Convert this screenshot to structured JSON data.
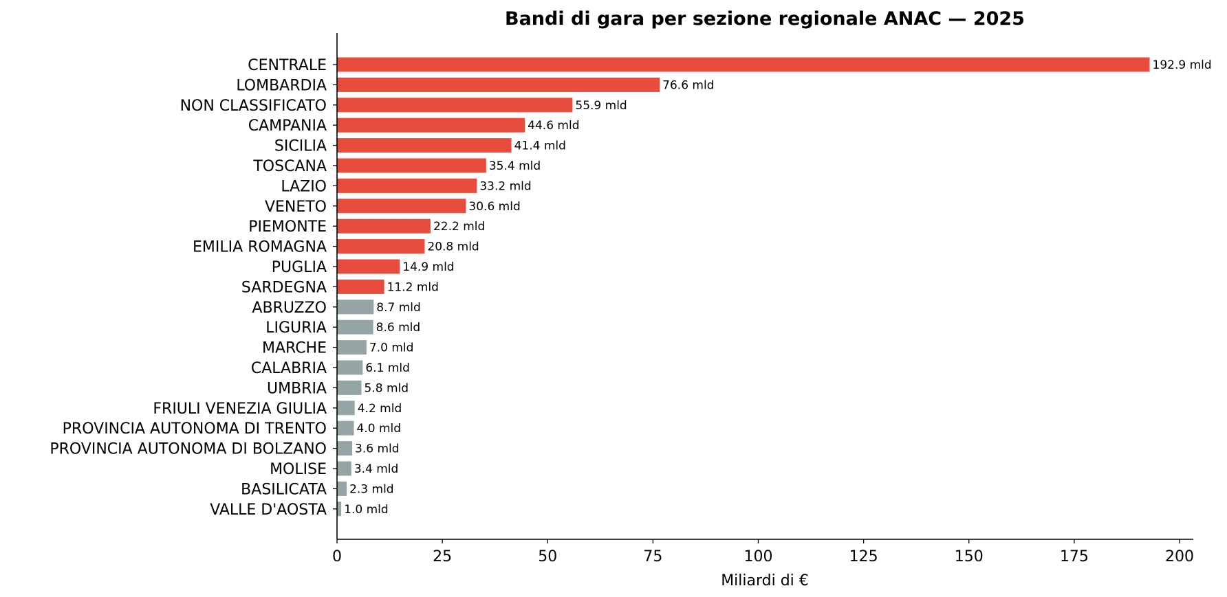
{
  "chart_data": {
    "type": "bar",
    "orientation": "horizontal",
    "title": "Bandi di gara per sezione regionale ANAC — 2025",
    "xlabel": "Miliardi di €",
    "ylabel": "",
    "xlim": [
      0,
      202
    ],
    "x_ticks": [
      0,
      25,
      50,
      75,
      100,
      125,
      150,
      175,
      200
    ],
    "grid": false,
    "legend": "none",
    "colors": {
      "highlight": "#e74c3c",
      "other": "#95a5a6"
    },
    "categories": [
      "CENTRALE",
      "LOMBARDIA",
      "NON CLASSIFICATO",
      "CAMPANIA",
      "SICILIA",
      "TOSCANA",
      "LAZIO",
      "VENETO",
      "PIEMONTE",
      "EMILIA ROMAGNA",
      "PUGLIA",
      "SARDEGNA",
      "ABRUZZO",
      "LIGURIA",
      "MARCHE",
      "CALABRIA",
      "UMBRIA",
      "FRIULI VENEZIA GIULIA",
      "PROVINCIA AUTONOMA DI TRENTO",
      "PROVINCIA AUTONOMA DI BOLZANO",
      "MOLISE",
      "BASILICATA",
      "VALLE D'AOSTA"
    ],
    "values": [
      192.9,
      76.6,
      55.9,
      44.6,
      41.4,
      35.4,
      33.2,
      30.6,
      22.2,
      20.8,
      14.9,
      11.2,
      8.7,
      8.6,
      7.0,
      6.1,
      5.8,
      4.2,
      4.0,
      3.6,
      3.4,
      2.3,
      1.0
    ],
    "bar_labels": [
      "192.9 mld",
      "76.6 mld",
      "55.9 mld",
      "44.6 mld",
      "41.4 mld",
      "35.4 mld",
      "33.2 mld",
      "30.6 mld",
      "22.2 mld",
      "20.8 mld",
      "14.9 mld",
      "11.2 mld",
      "8.7 mld",
      "8.6 mld",
      "7.0 mld",
      "6.1 mld",
      "5.8 mld",
      "4.2 mld",
      "4.0 mld",
      "3.6 mld",
      "3.4 mld",
      "2.3 mld",
      "1.0 mld"
    ],
    "highlighted": [
      true,
      true,
      true,
      true,
      true,
      true,
      true,
      true,
      true,
      true,
      true,
      true,
      false,
      false,
      false,
      false,
      false,
      false,
      false,
      false,
      false,
      false,
      false
    ]
  }
}
